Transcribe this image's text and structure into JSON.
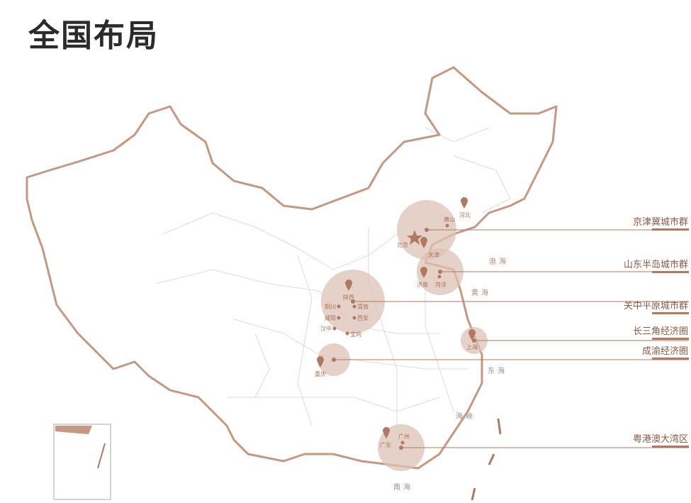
{
  "title": "全国布局",
  "colors": {
    "border": "#c49883",
    "circle": "#dcc2b5",
    "accent": "#b07a62",
    "province": "#d8d8d8"
  },
  "regions": [
    {
      "name": "京津冀城市群",
      "cities": [
        "北京",
        "天津",
        "河北",
        "唐山"
      ]
    },
    {
      "name": "山东半岛城市群",
      "cities": [
        "济南",
        "菏泽"
      ]
    },
    {
      "name": "关中平原城市群",
      "cities": [
        "陕西",
        "铜川",
        "渭南",
        "咸阳",
        "西安",
        "汉中",
        "宝鸡"
      ]
    },
    {
      "name": "长三角经济圈",
      "cities": [
        "上海"
      ]
    },
    {
      "name": "成渝经济圈",
      "cities": [
        "重庆"
      ]
    },
    {
      "name": "粤港澳大湾区",
      "cities": [
        "广东",
        "广州"
      ]
    }
  ],
  "seas": [
    "渤海",
    "黄海",
    "东海",
    "海峡",
    "南海"
  ]
}
